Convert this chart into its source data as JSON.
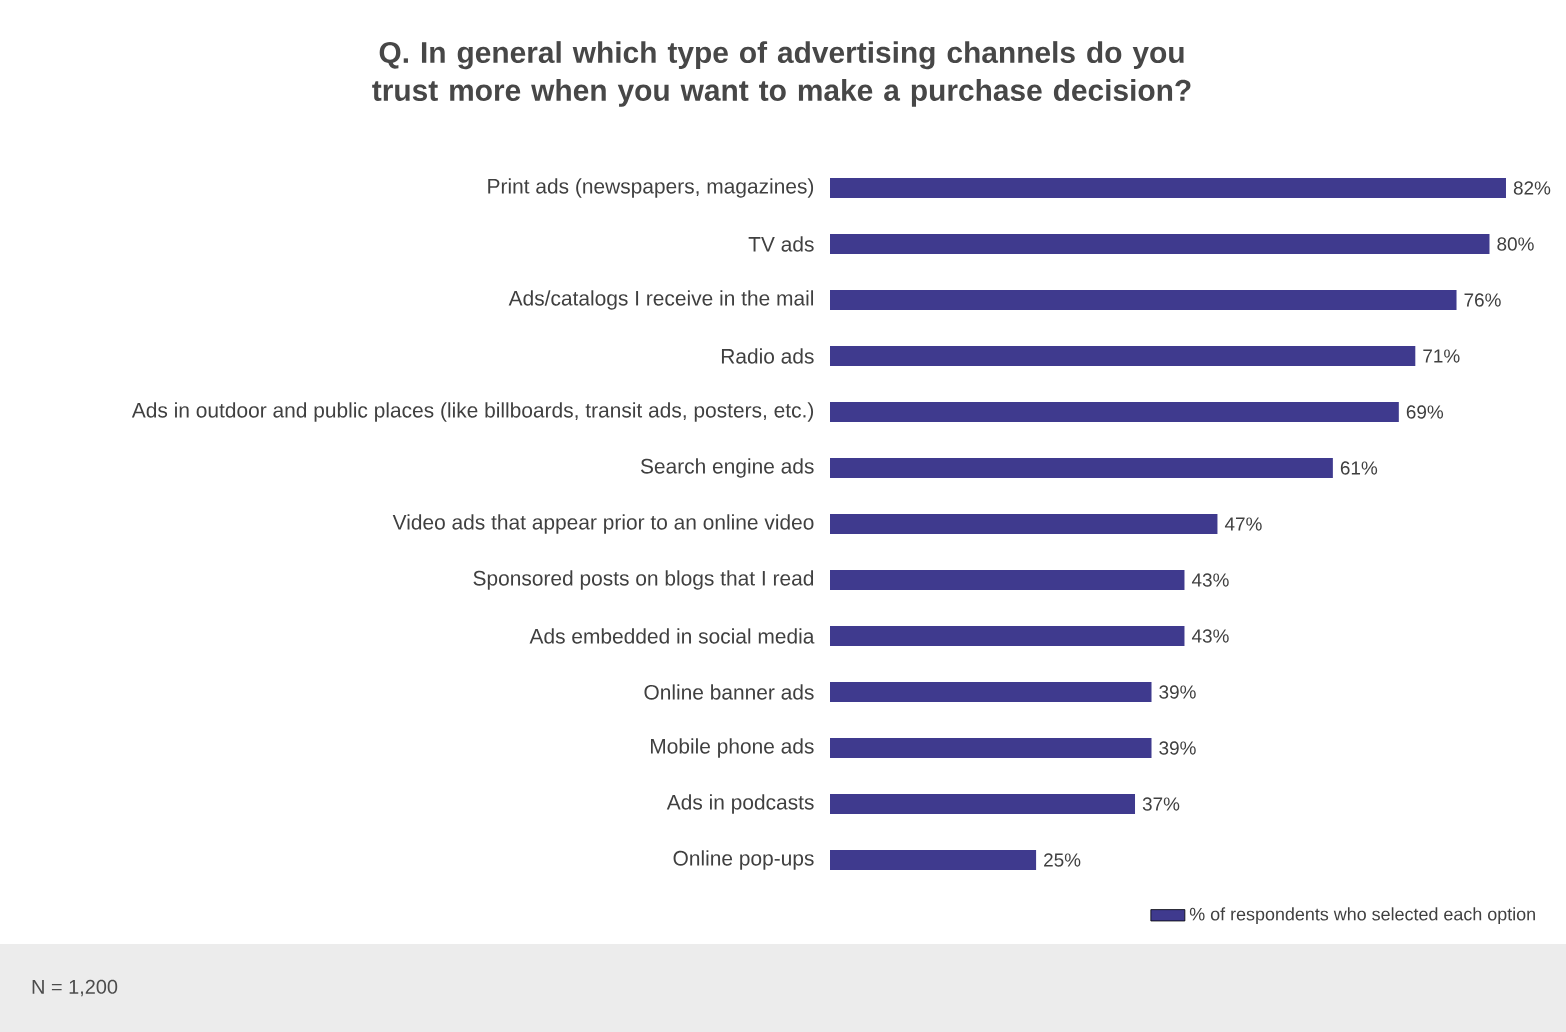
{
  "chart_data": {
    "type": "bar",
    "orientation": "horizontal",
    "title": "Q. In general which type of advertising channels do you trust more when you want to make a purchase decision?",
    "categories": [
      "Print ads (newspapers, magazines)",
      "TV ads",
      "Ads/catalogs I receive in the mail",
      "Radio ads",
      "Ads in outdoor and public places (like billboards, transit ads, posters, etc.)",
      "Search engine ads",
      "Video ads that appear prior to an online video",
      "Sponsored posts on blogs that I read",
      "Ads embedded in social media",
      "Online banner ads",
      "Mobile phone ads",
      "Ads in podcasts",
      "Online pop-ups"
    ],
    "series": [
      {
        "name": "% of respondents who selected each option",
        "color": "#3f3a8e",
        "values": [
          82,
          80,
          76,
          71,
          69,
          61,
          47,
          43,
          43,
          39,
          39,
          37,
          25
        ],
        "value_labels": [
          "82%",
          "80%",
          "76%",
          "71%",
          "69%",
          "61%",
          "47%",
          "43%",
          "43%",
          "39%",
          "39%",
          "37%",
          "25%"
        ]
      }
    ],
    "legend": "bottom right",
    "annotations": [
      "N = 1,200"
    ]
  }
}
